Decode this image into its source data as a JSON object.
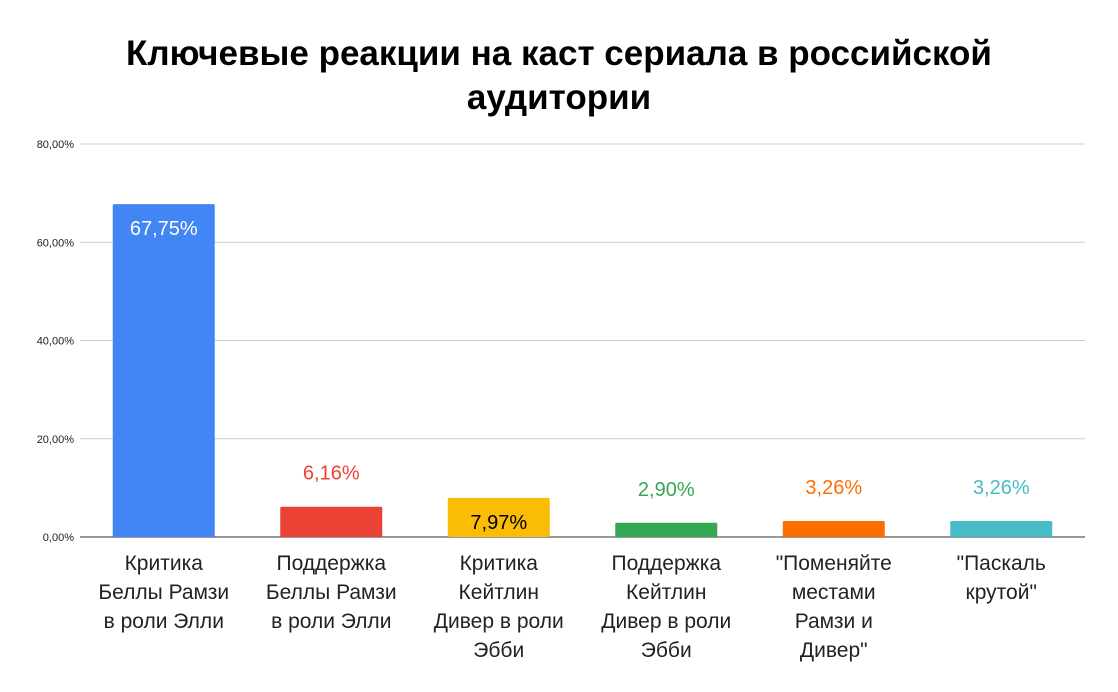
{
  "chart_data": {
    "type": "bar",
    "title_lines": [
      "Ключевые реакции на каст сериала в российской",
      "аудитории"
    ],
    "xlabel": "",
    "ylabel": "",
    "ylim": [
      0,
      80
    ],
    "y_ticks": [
      0,
      20,
      40,
      60,
      80
    ],
    "y_tick_labels": [
      "0,00%",
      "20,00%",
      "40,00%",
      "60,00%",
      "80,00%"
    ],
    "grid": true,
    "legend": "none",
    "categories": [
      [
        "Критика",
        "Беллы Рамзи",
        "в роли Элли"
      ],
      [
        "Поддержка",
        "Беллы Рамзи",
        "в роли Элли"
      ],
      [
        "Критика",
        "Кейтлин",
        "Дивер в роли",
        "Эбби"
      ],
      [
        "Поддержка",
        "Кейтлин",
        "Дивер в роли",
        "Эбби"
      ],
      [
        "\"Поменяйте",
        "местами",
        "Рамзи и",
        "Дивер\""
      ],
      [
        "\"Паскаль",
        "крутой\""
      ]
    ],
    "values": [
      67.75,
      6.16,
      7.97,
      2.9,
      3.26,
      3.26
    ],
    "value_labels": [
      "67,75%",
      "6,16%",
      "7,97%",
      "2,90%",
      "3,26%",
      "3,26%"
    ],
    "value_label_position": [
      "inside",
      "above",
      "inside",
      "above",
      "above",
      "above"
    ],
    "bar_colors": [
      "#4285f4",
      "#ea4335",
      "#fbbc04",
      "#34a853",
      "#ff6d01",
      "#46bdc6"
    ],
    "value_label_colors": [
      "#ffffff",
      "#ea4335",
      "#000000",
      "#34a853",
      "#ff6d01",
      "#46bdc6"
    ]
  }
}
